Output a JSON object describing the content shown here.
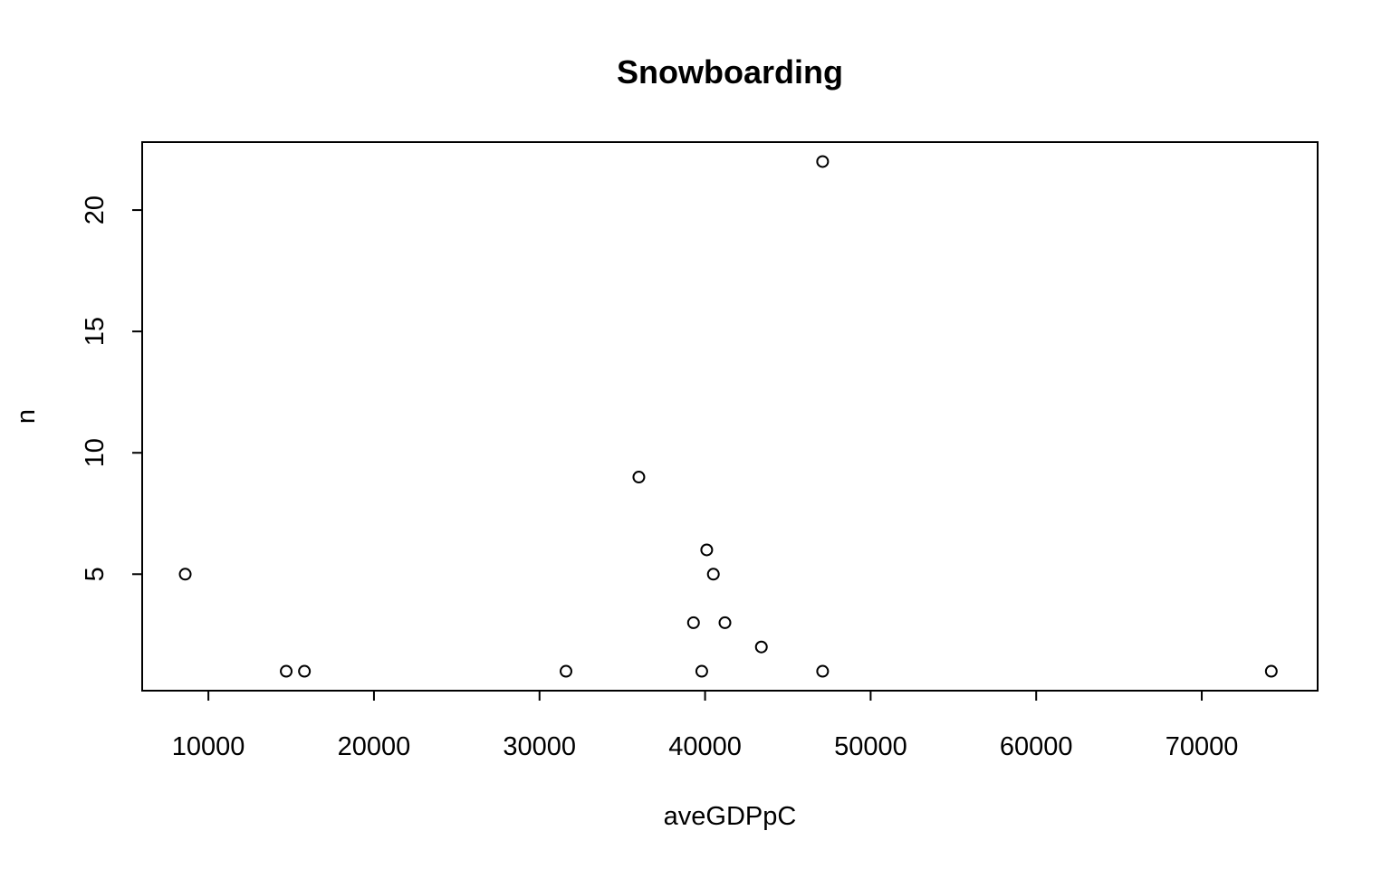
{
  "chart_data": {
    "type": "scatter",
    "title": "Snowboarding",
    "xlabel": "aveGDPpC",
    "ylabel": "n",
    "xlim": [
      6000,
      77000
    ],
    "ylim": [
      0.2,
      22.8
    ],
    "xticks": [
      10000,
      20000,
      30000,
      40000,
      50000,
      60000,
      70000
    ],
    "yticks": [
      5,
      10,
      15,
      20
    ],
    "grid": false,
    "points": [
      {
        "x": 8600,
        "y": 5
      },
      {
        "x": 14700,
        "y": 1
      },
      {
        "x": 15800,
        "y": 1
      },
      {
        "x": 31600,
        "y": 1
      },
      {
        "x": 36000,
        "y": 9
      },
      {
        "x": 39300,
        "y": 3
      },
      {
        "x": 39800,
        "y": 1
      },
      {
        "x": 40100,
        "y": 6
      },
      {
        "x": 40500,
        "y": 5
      },
      {
        "x": 41200,
        "y": 3
      },
      {
        "x": 43400,
        "y": 2
      },
      {
        "x": 47100,
        "y": 22
      },
      {
        "x": 47100,
        "y": 1
      },
      {
        "x": 74200,
        "y": 1
      }
    ]
  }
}
